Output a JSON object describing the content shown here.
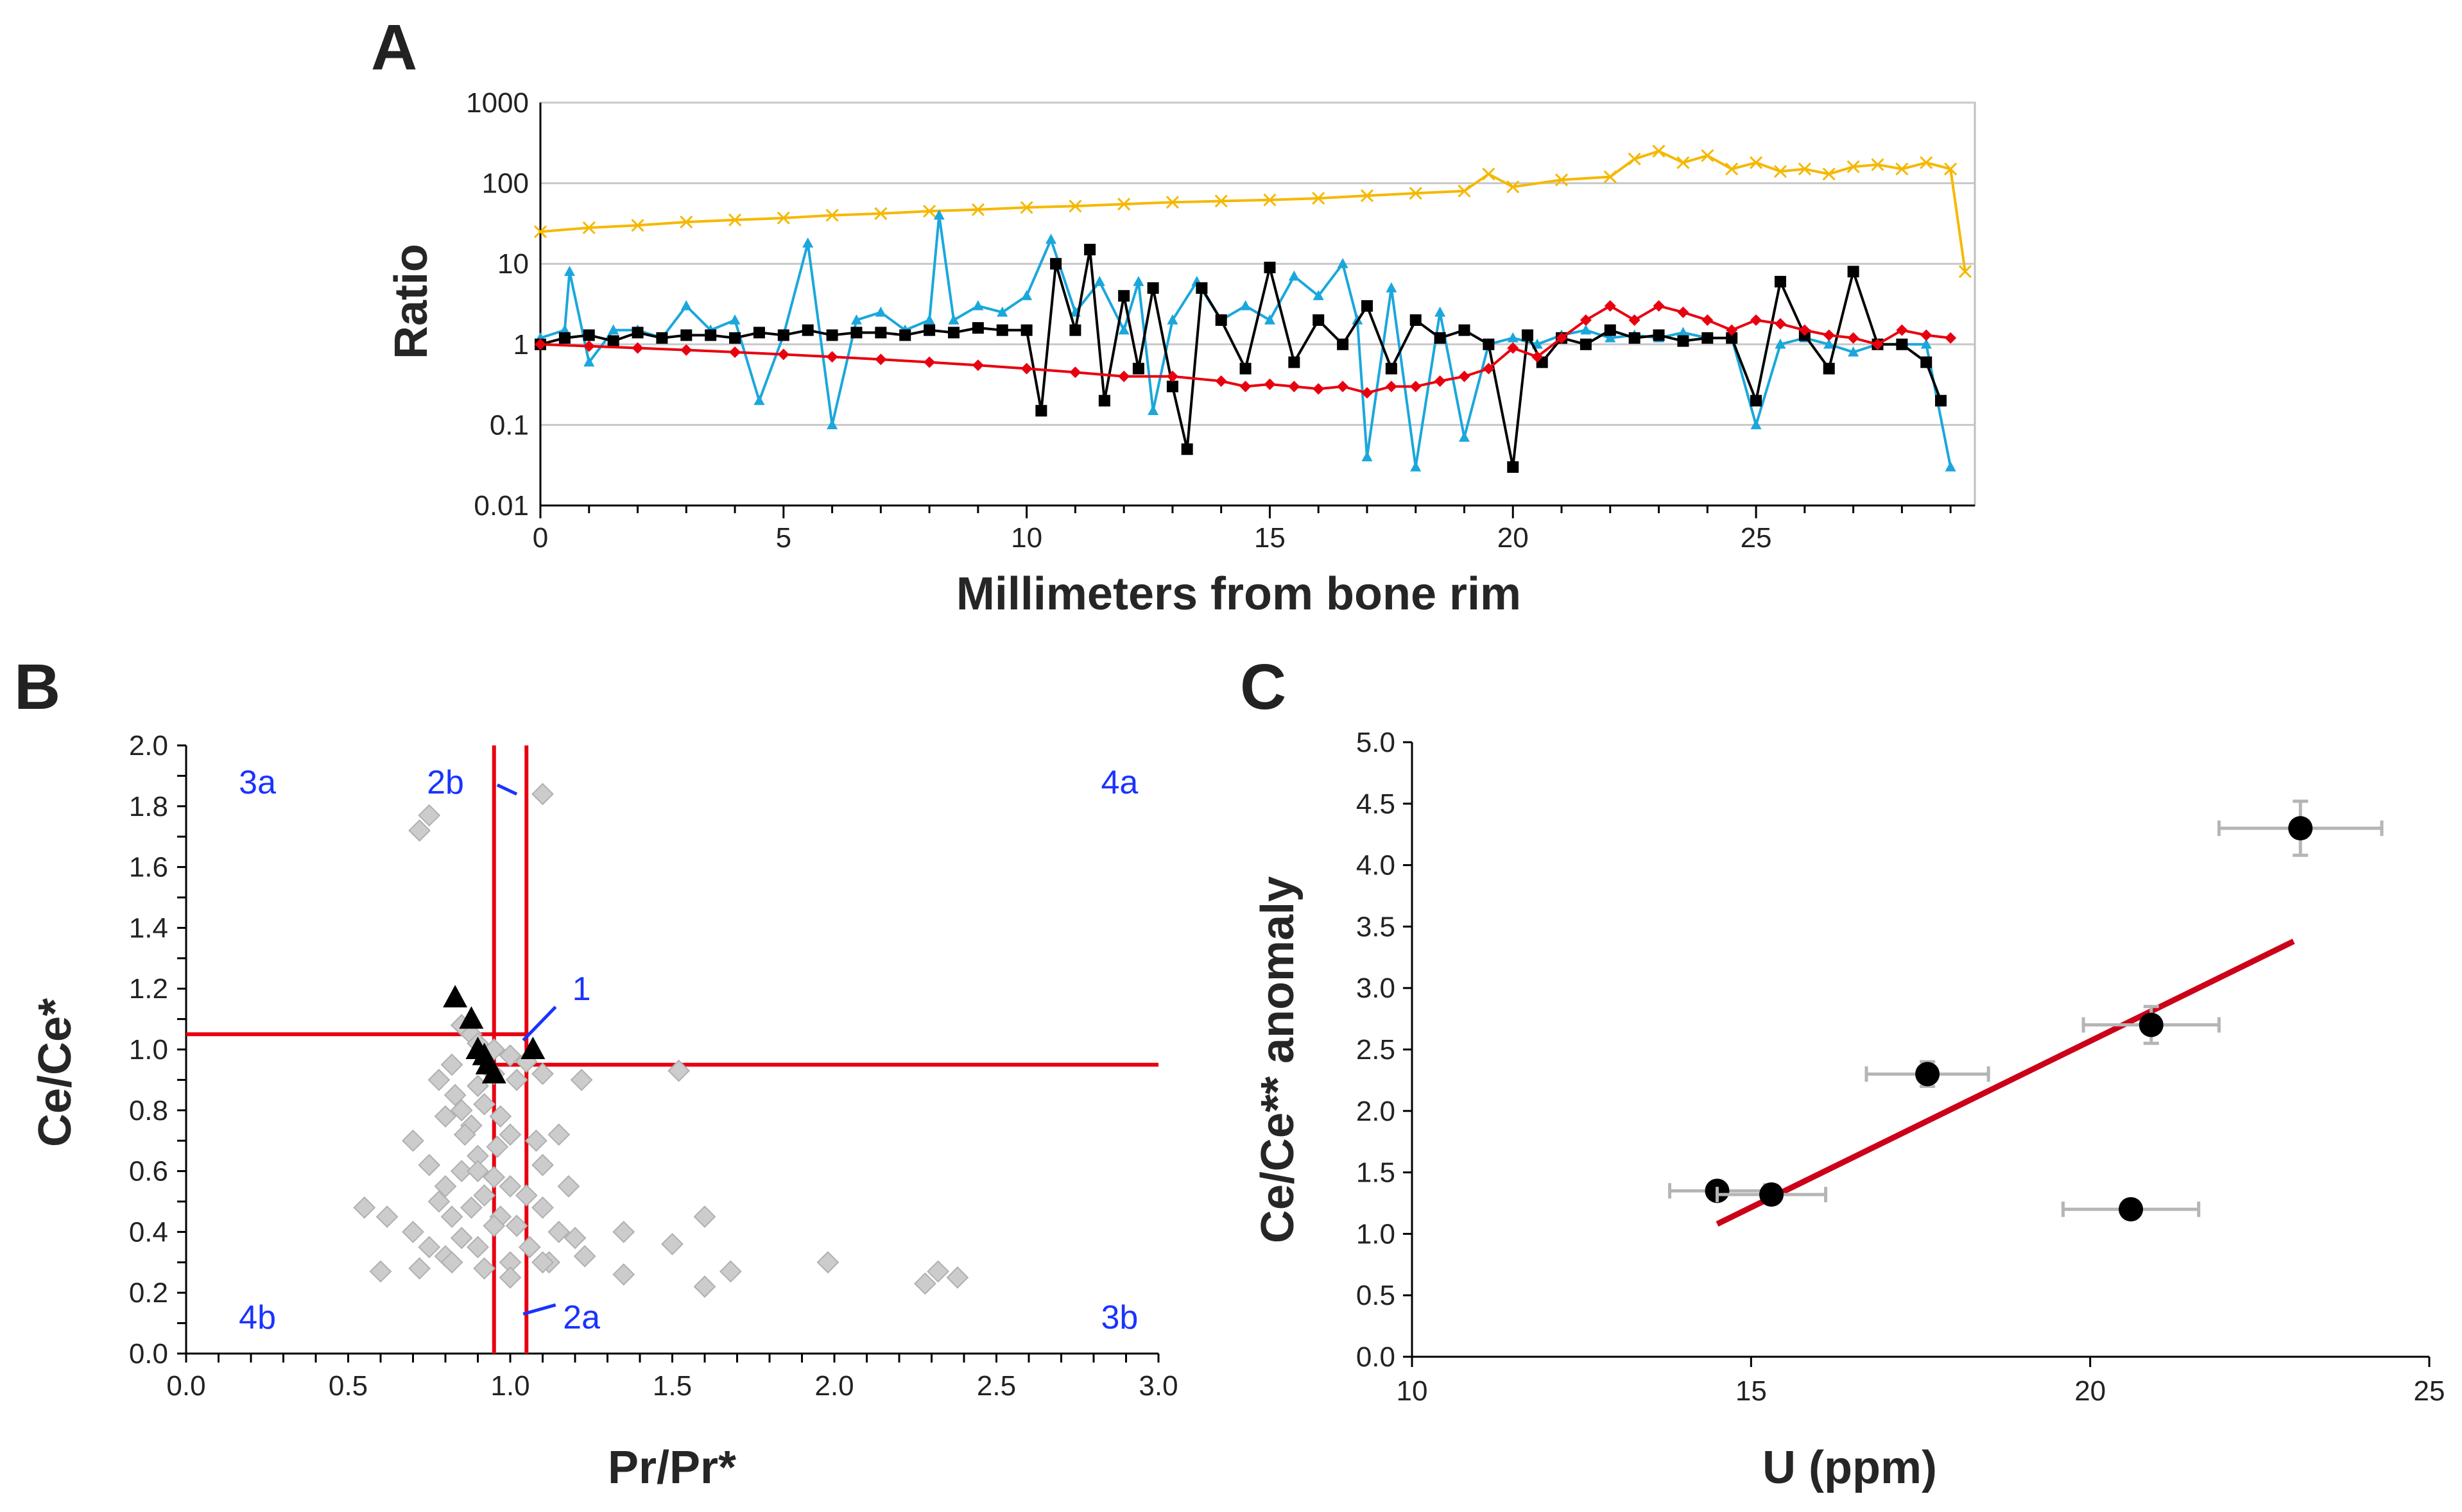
{
  "figure": {
    "panel_labels": [
      "A",
      "B",
      "C"
    ]
  },
  "chart_data": [
    {
      "id": "A",
      "type": "line",
      "title": "",
      "xlabel": "Millimeters from bone rim",
      "ylabel": "Ratio",
      "yscale": "log",
      "xlim": [
        0,
        29.5
      ],
      "ylim": [
        0.01,
        1000
      ],
      "xticks": [
        0,
        5,
        10,
        15,
        20,
        25
      ],
      "xtick_labels": [
        "0",
        "5",
        "10",
        "15",
        "20",
        "25"
      ],
      "yticks": [
        0.01,
        0.1,
        1,
        10,
        100,
        1000
      ],
      "ytick_labels": [
        "0.01",
        "0.1",
        "1",
        "10",
        "100",
        "1000"
      ],
      "grid": true,
      "series": [
        {
          "name": "orange series",
          "color": "#F5B800",
          "marker": "x",
          "x": [
            0,
            1,
            2,
            3,
            4,
            5,
            6,
            7,
            8,
            9,
            10,
            11,
            12,
            13,
            14,
            15,
            16,
            17,
            18,
            19,
            19.5,
            20,
            21,
            22,
            22.5,
            23,
            23.5,
            24,
            24.5,
            25,
            25.5,
            26,
            26.5,
            27,
            27.5,
            28,
            28.5,
            29,
            29.3
          ],
          "values": [
            25,
            28,
            30,
            33,
            35,
            37,
            40,
            42,
            45,
            47,
            50,
            52,
            55,
            58,
            60,
            62,
            65,
            70,
            75,
            80,
            130,
            90,
            110,
            120,
            200,
            250,
            180,
            220,
            150,
            180,
            140,
            150,
            130,
            160,
            170,
            150,
            180,
            150,
            8
          ]
        },
        {
          "name": "blue series",
          "color": "#1AA7DC",
          "marker": "triangle",
          "x": [
            0,
            0.5,
            0.6,
            1,
            1.5,
            2,
            2.5,
            3,
            3.5,
            4,
            4.5,
            5,
            5.5,
            6,
            6.5,
            7,
            7.5,
            8,
            8.2,
            8.5,
            9,
            9.5,
            10,
            10.5,
            11,
            11.5,
            12,
            12.3,
            12.6,
            13,
            13.5,
            14,
            14.5,
            15,
            15.5,
            16,
            16.5,
            16.8,
            17,
            17.5,
            18,
            18.5,
            19,
            19.5,
            20,
            20.5,
            21,
            21.5,
            22,
            22.5,
            23,
            23.5,
            24,
            24.5,
            25,
            25.5,
            26,
            26.5,
            27,
            27.5,
            28,
            28.5,
            29
          ],
          "values": [
            1.2,
            1.5,
            8,
            0.6,
            1.5,
            1.5,
            1.2,
            3,
            1.5,
            2,
            0.2,
            1.3,
            18,
            0.1,
            2,
            2.5,
            1.5,
            2,
            40,
            2,
            3,
            2.5,
            4,
            20,
            2.5,
            6,
            1.5,
            6,
            0.15,
            2,
            6,
            2,
            3,
            2,
            7,
            4,
            10,
            2,
            0.04,
            5,
            0.03,
            2.5,
            0.07,
            1,
            1.2,
            1,
            1.3,
            1.5,
            1.2,
            1.3,
            1.2,
            1.4,
            1.2,
            1.2,
            0.1,
            1,
            1.2,
            1,
            0.8,
            1,
            1,
            1,
            0.03
          ]
        },
        {
          "name": "black series",
          "color": "#000000",
          "marker": "square",
          "x": [
            0,
            0.5,
            1,
            1.5,
            2,
            2.5,
            3,
            3.5,
            4,
            4.5,
            5,
            5.5,
            6,
            6.5,
            7,
            7.5,
            8,
            8.5,
            9,
            9.5,
            10,
            10.3,
            10.6,
            11,
            11.3,
            11.6,
            12,
            12.3,
            12.6,
            13,
            13.3,
            13.6,
            14,
            14.5,
            15,
            15.5,
            16,
            16.5,
            17,
            17.5,
            18,
            18.5,
            19,
            19.5,
            20,
            20.3,
            20.6,
            21,
            21.5,
            22,
            22.5,
            23,
            23.5,
            24,
            24.5,
            25,
            25.5,
            26,
            26.5,
            27,
            27.5,
            28,
            28.5,
            28.8
          ],
          "values": [
            1,
            1.2,
            1.3,
            1.1,
            1.4,
            1.2,
            1.3,
            1.3,
            1.2,
            1.4,
            1.3,
            1.5,
            1.3,
            1.4,
            1.4,
            1.3,
            1.5,
            1.4,
            1.6,
            1.5,
            1.5,
            0.15,
            10,
            1.5,
            15,
            0.2,
            4,
            0.5,
            5,
            0.3,
            0.05,
            5,
            2,
            0.5,
            9,
            0.6,
            2,
            1,
            3,
            0.5,
            2,
            1.2,
            1.5,
            1,
            0.03,
            1.3,
            0.6,
            1.2,
            1,
            1.5,
            1.2,
            1.3,
            1.1,
            1.2,
            1.2,
            0.2,
            6,
            1.3,
            0.5,
            8,
            1,
            1,
            0.6,
            0.2
          ]
        },
        {
          "name": "red series",
          "color": "#E8000F",
          "marker": "diamond",
          "x": [
            0,
            1,
            2,
            3,
            4,
            5,
            6,
            7,
            8,
            9,
            10,
            11,
            12,
            13,
            14,
            14.5,
            15,
            15.5,
            16,
            16.5,
            17,
            17.5,
            18,
            18.5,
            19,
            19.5,
            20,
            20.5,
            21,
            21.5,
            22,
            22.5,
            23,
            23.5,
            24,
            24.5,
            25,
            25.5,
            26,
            26.5,
            27,
            27.5,
            28,
            28.5,
            29
          ],
          "values": [
            1,
            0.95,
            0.9,
            0.85,
            0.8,
            0.75,
            0.7,
            0.65,
            0.6,
            0.55,
            0.5,
            0.45,
            0.4,
            0.4,
            0.35,
            0.3,
            0.32,
            0.3,
            0.28,
            0.3,
            0.25,
            0.3,
            0.3,
            0.35,
            0.4,
            0.5,
            0.9,
            0.7,
            1.2,
            2,
            3,
            2,
            3,
            2.5,
            2,
            1.5,
            2,
            1.8,
            1.5,
            1.3,
            1.2,
            1,
            1.5,
            1.3,
            1.2
          ]
        }
      ]
    },
    {
      "id": "B",
      "type": "scatter",
      "xlabel": "Pr/Pr*",
      "ylabel": "Ce/Ce*",
      "xlim": [
        0,
        3
      ],
      "ylim": [
        0,
        2
      ],
      "xticks": [
        0,
        0.5,
        1,
        1.5,
        2,
        2.5,
        3
      ],
      "xtick_labels": [
        "0.0",
        "0.5",
        "1.0",
        "1.5",
        "2.0",
        "2.5",
        "3.0"
      ],
      "yticks": [
        0,
        0.2,
        0.4,
        0.6,
        0.8,
        1,
        1.2,
        1.4,
        1.6,
        1.8,
        2
      ],
      "ytick_labels": [
        "0.0",
        "0.2",
        "0.4",
        "0.6",
        "0.8",
        "1.0",
        "1.2",
        "1.4",
        "1.6",
        "1.8",
        "2.0"
      ],
      "reference_lines": {
        "vertical_x": [
          0.95,
          1.05
        ],
        "horizontal": [
          {
            "y": 1.05,
            "x_from": 0,
            "x_to": 1.05
          },
          {
            "y": 0.95,
            "x_from": 0.95,
            "x_to": 3
          }
        ],
        "color": "#E8000F"
      },
      "annotations": [
        {
          "text": "3a",
          "x": 0.22,
          "y": 1.88
        },
        {
          "text": "2b",
          "x": 0.8,
          "y": 1.88
        },
        {
          "text": "4a",
          "x": 2.88,
          "y": 1.88
        },
        {
          "text": "1",
          "x": 1.22,
          "y": 1.2
        },
        {
          "text": "4b",
          "x": 0.22,
          "y": 0.12
        },
        {
          "text": "2a",
          "x": 1.22,
          "y": 0.12
        },
        {
          "text": "3b",
          "x": 2.88,
          "y": 0.12
        }
      ],
      "leader_lines": [
        {
          "x1": 0.96,
          "y1": 1.87,
          "x2": 1.02,
          "y2": 1.84
        },
        {
          "x1": 1.14,
          "y1": 1.14,
          "x2": 1.04,
          "y2": 1.03
        },
        {
          "x1": 1.14,
          "y1": 0.16,
          "x2": 1.04,
          "y2": 0.13
        }
      ],
      "series": [
        {
          "name": "gray diamonds",
          "color": "#CCCCCC",
          "marker": "diamond",
          "points": [
            [
              0.72,
              1.72
            ],
            [
              0.75,
              1.77
            ],
            [
              1.1,
              1.84
            ],
            [
              0.85,
              1.08
            ],
            [
              0.88,
              1.05
            ],
            [
              0.9,
              1.02
            ],
            [
              0.95,
              1.0
            ],
            [
              1.0,
              0.98
            ],
            [
              1.05,
              0.96
            ],
            [
              0.82,
              0.95
            ],
            [
              0.78,
              0.9
            ],
            [
              0.83,
              0.85
            ],
            [
              0.9,
              0.88
            ],
            [
              0.95,
              0.92
            ],
            [
              1.02,
              0.9
            ],
            [
              1.1,
              0.92
            ],
            [
              0.8,
              0.78
            ],
            [
              0.85,
              0.8
            ],
            [
              0.88,
              0.75
            ],
            [
              0.92,
              0.82
            ],
            [
              0.97,
              0.78
            ],
            [
              1.0,
              0.72
            ],
            [
              1.08,
              0.7
            ],
            [
              1.22,
              0.9
            ],
            [
              1.15,
              0.72
            ],
            [
              1.52,
              0.93
            ],
            [
              0.7,
              0.7
            ],
            [
              0.75,
              0.62
            ],
            [
              0.8,
              0.55
            ],
            [
              0.85,
              0.6
            ],
            [
              0.9,
              0.65
            ],
            [
              0.95,
              0.58
            ],
            [
              1.0,
              0.55
            ],
            [
              1.05,
              0.52
            ],
            [
              1.1,
              0.62
            ],
            [
              1.18,
              0.55
            ],
            [
              0.78,
              0.5
            ],
            [
              0.82,
              0.45
            ],
            [
              0.88,
              0.48
            ],
            [
              0.92,
              0.52
            ],
            [
              0.97,
              0.45
            ],
            [
              1.02,
              0.42
            ],
            [
              1.1,
              0.48
            ],
            [
              1.15,
              0.4
            ],
            [
              0.55,
              0.48
            ],
            [
              0.62,
              0.45
            ],
            [
              0.7,
              0.4
            ],
            [
              0.75,
              0.35
            ],
            [
              0.8,
              0.32
            ],
            [
              0.85,
              0.38
            ],
            [
              0.9,
              0.35
            ],
            [
              0.95,
              0.42
            ],
            [
              1.0,
              0.3
            ],
            [
              1.06,
              0.35
            ],
            [
              1.12,
              0.3
            ],
            [
              1.2,
              0.38
            ],
            [
              1.23,
              0.32
            ],
            [
              0.6,
              0.27
            ],
            [
              0.72,
              0.28
            ],
            [
              0.82,
              0.3
            ],
            [
              0.92,
              0.28
            ],
            [
              1.0,
              0.25
            ],
            [
              1.1,
              0.3
            ],
            [
              1.35,
              0.4
            ],
            [
              1.35,
              0.26
            ],
            [
              1.5,
              0.36
            ],
            [
              1.6,
              0.45
            ],
            [
              1.6,
              0.22
            ],
            [
              1.68,
              0.27
            ],
            [
              1.98,
              0.3
            ],
            [
              2.28,
              0.23
            ],
            [
              2.32,
              0.27
            ],
            [
              2.38,
              0.25
            ],
            [
              0.9,
              0.6
            ],
            [
              0.86,
              0.72
            ],
            [
              0.96,
              0.68
            ]
          ]
        },
        {
          "name": "black triangles",
          "color": "#000000",
          "marker": "triangle",
          "points": [
            [
              0.83,
              1.17
            ],
            [
              0.88,
              1.1
            ],
            [
              0.9,
              1.0
            ],
            [
              0.92,
              0.98
            ],
            [
              0.93,
              0.95
            ],
            [
              0.95,
              0.92
            ],
            [
              1.07,
              1.0
            ]
          ]
        }
      ]
    },
    {
      "id": "C",
      "type": "scatter",
      "xlabel": "U (ppm)",
      "ylabel": "Ce/Ce** anomaly",
      "xlim": [
        10,
        25
      ],
      "ylim": [
        0,
        5
      ],
      "xticks": [
        10,
        15,
        20,
        25
      ],
      "xtick_labels": [
        "10",
        "15",
        "20",
        "25"
      ],
      "yticks": [
        0,
        0.5,
        1,
        1.5,
        2,
        2.5,
        3,
        3.5,
        4,
        4.5,
        5
      ],
      "ytick_labels": [
        "0.0",
        "0.5",
        "1.0",
        "1.5",
        "2.0",
        "2.5",
        "3.0",
        "3.5",
        "4.0",
        "4.5",
        "5.0"
      ],
      "grid": false,
      "series": [
        {
          "name": "samples",
          "color": "#000000",
          "marker": "circle",
          "x": [
            14.5,
            15.3,
            17.6,
            20.6,
            20.9,
            23.1
          ],
          "values": [
            1.35,
            1.32,
            2.3,
            1.2,
            2.7,
            4.3
          ],
          "x_error": [
            0.7,
            0.8,
            0.9,
            1.0,
            1.0,
            1.2
          ],
          "y_error": [
            0.05,
            0.05,
            0.1,
            0.05,
            0.15,
            0.22
          ]
        }
      ],
      "trendline": {
        "color": "#CC0018",
        "x": [
          14.5,
          23.0
        ],
        "values": [
          1.08,
          3.38
        ]
      }
    }
  ]
}
